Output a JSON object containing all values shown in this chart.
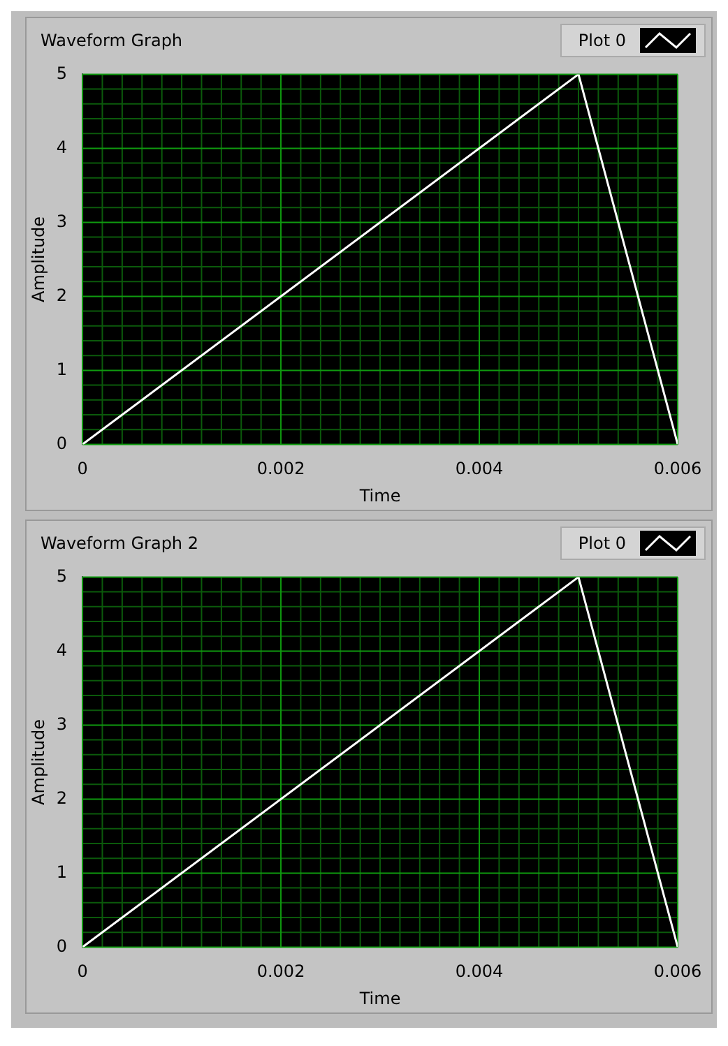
{
  "chart_data": [
    {
      "type": "line",
      "title": "Waveform Graph",
      "xlabel": "Time",
      "ylabel": "Amplitude",
      "x": [
        0,
        0.005,
        0.006
      ],
      "series": [
        {
          "name": "Plot 0",
          "color": "#ffffff",
          "values": [
            0,
            5,
            0
          ]
        }
      ],
      "xlim": [
        0,
        0.006
      ],
      "xticks": [
        0,
        {
          "value": 0.0002,
          "label": null
        },
        {
          "value": 0.0004,
          "label": null
        },
        {
          "value": 0.0006,
          "label": null
        },
        {
          "value": 0.0008,
          "label": null
        },
        {
          "value": 0.001,
          "label": null
        },
        {
          "value": 0.0012,
          "label": null
        },
        {
          "value": 0.0014,
          "label": null
        },
        {
          "value": 0.0016,
          "label": null
        },
        {
          "value": 0.0018,
          "label": null
        },
        0.002,
        {
          "value": 0.0022,
          "label": null
        },
        {
          "value": 0.0024,
          "label": null
        },
        {
          "value": 0.0026,
          "label": null
        },
        {
          "value": 0.0028,
          "label": null
        },
        {
          "value": 0.003,
          "label": null
        },
        {
          "value": 0.0032,
          "label": null
        },
        {
          "value": 0.0034,
          "label": null
        },
        {
          "value": 0.0036,
          "label": null
        },
        {
          "value": 0.0038,
          "label": null
        },
        0.004,
        {
          "value": 0.0042,
          "label": null
        },
        {
          "value": 0.0044,
          "label": null
        },
        {
          "value": 0.0046,
          "label": null
        },
        {
          "value": 0.0048,
          "label": null
        },
        {
          "value": 0.005,
          "label": null
        },
        {
          "value": 0.0052,
          "label": null
        },
        {
          "value": 0.0054,
          "label": null
        },
        {
          "value": 0.0056,
          "label": null
        },
        {
          "value": 0.0058,
          "label": null
        },
        0.006
      ],
      "ylim": [
        0,
        5
      ],
      "yticks": [
        0,
        {
          "value": 0.2,
          "label": null
        },
        {
          "value": 0.4,
          "label": null
        },
        {
          "value": 0.6,
          "label": null
        },
        {
          "value": 0.8,
          "label": null
        },
        1,
        {
          "value": 1.2,
          "label": null
        },
        {
          "value": 1.4,
          "label": null
        },
        {
          "value": 1.6,
          "label": null
        },
        {
          "value": 1.8,
          "label": null
        },
        2,
        {
          "value": 2.2,
          "label": null
        },
        {
          "value": 2.4,
          "label": null
        },
        {
          "value": 2.6,
          "label": null
        },
        {
          "value": 2.8,
          "label": null
        },
        3,
        {
          "value": 3.2,
          "label": null
        },
        {
          "value": 3.4,
          "label": null
        },
        {
          "value": 3.6,
          "label": null
        },
        {
          "value": 3.8,
          "label": null
        },
        4,
        {
          "value": 4.2,
          "label": null
        },
        {
          "value": 4.4,
          "label": null
        },
        {
          "value": 4.6,
          "label": null
        },
        {
          "value": 4.8,
          "label": null
        },
        5
      ],
      "grid": true,
      "legend": "top right"
    },
    {
      "type": "line",
      "title": "Waveform Graph 2",
      "xlabel": "Time",
      "ylabel": "Amplitude",
      "x": [
        0,
        0.005,
        0.006
      ],
      "series": [
        {
          "name": "Plot 0",
          "color": "#ffffff",
          "values": [
            0,
            5,
            0
          ]
        }
      ],
      "xlim": [
        0,
        0.006
      ],
      "xticks": [
        0,
        {
          "value": 0.0002,
          "label": null
        },
        {
          "value": 0.0004,
          "label": null
        },
        {
          "value": 0.0006,
          "label": null
        },
        {
          "value": 0.0008,
          "label": null
        },
        {
          "value": 0.001,
          "label": null
        },
        {
          "value": 0.0012,
          "label": null
        },
        {
          "value": 0.0014,
          "label": null
        },
        {
          "value": 0.0016,
          "label": null
        },
        {
          "value": 0.0018,
          "label": null
        },
        0.002,
        {
          "value": 0.0022,
          "label": null
        },
        {
          "value": 0.0024,
          "label": null
        },
        {
          "value": 0.0026,
          "label": null
        },
        {
          "value": 0.0028,
          "label": null
        },
        {
          "value": 0.003,
          "label": null
        },
        {
          "value": 0.0032,
          "label": null
        },
        {
          "value": 0.0034,
          "label": null
        },
        {
          "value": 0.0036,
          "label": null
        },
        {
          "value": 0.0038,
          "label": null
        },
        0.004,
        {
          "value": 0.0042,
          "label": null
        },
        {
          "value": 0.0044,
          "label": null
        },
        {
          "value": 0.0046,
          "label": null
        },
        {
          "value": 0.0048,
          "label": null
        },
        {
          "value": 0.005,
          "label": null
        },
        {
          "value": 0.0052,
          "label": null
        },
        {
          "value": 0.0054,
          "label": null
        },
        {
          "value": 0.0056,
          "label": null
        },
        {
          "value": 0.0058,
          "label": null
        },
        0.006
      ],
      "ylim": [
        0,
        5
      ],
      "yticks": [
        0,
        {
          "value": 0.2,
          "label": null
        },
        {
          "value": 0.4,
          "label": null
        },
        {
          "value": 0.6,
          "label": null
        },
        {
          "value": 0.8,
          "label": null
        },
        1,
        {
          "value": 1.2,
          "label": null
        },
        {
          "value": 1.4,
          "label": null
        },
        {
          "value": 1.6,
          "label": null
        },
        {
          "value": 1.8,
          "label": null
        },
        2,
        {
          "value": 2.2,
          "label": null
        },
        {
          "value": 2.4,
          "label": null
        },
        {
          "value": 2.6,
          "label": null
        },
        {
          "value": 2.8,
          "label": null
        },
        3,
        {
          "value": 3.2,
          "label": null
        },
        {
          "value": 3.4,
          "label": null
        },
        {
          "value": 3.6,
          "label": null
        },
        {
          "value": 3.8,
          "label": null
        },
        4,
        {
          "value": 4.2,
          "label": null
        },
        {
          "value": 4.4,
          "label": null
        },
        {
          "value": 4.6,
          "label": null
        },
        {
          "value": 4.8,
          "label": null
        },
        5
      ],
      "grid": true,
      "legend": "top right"
    }
  ]
}
